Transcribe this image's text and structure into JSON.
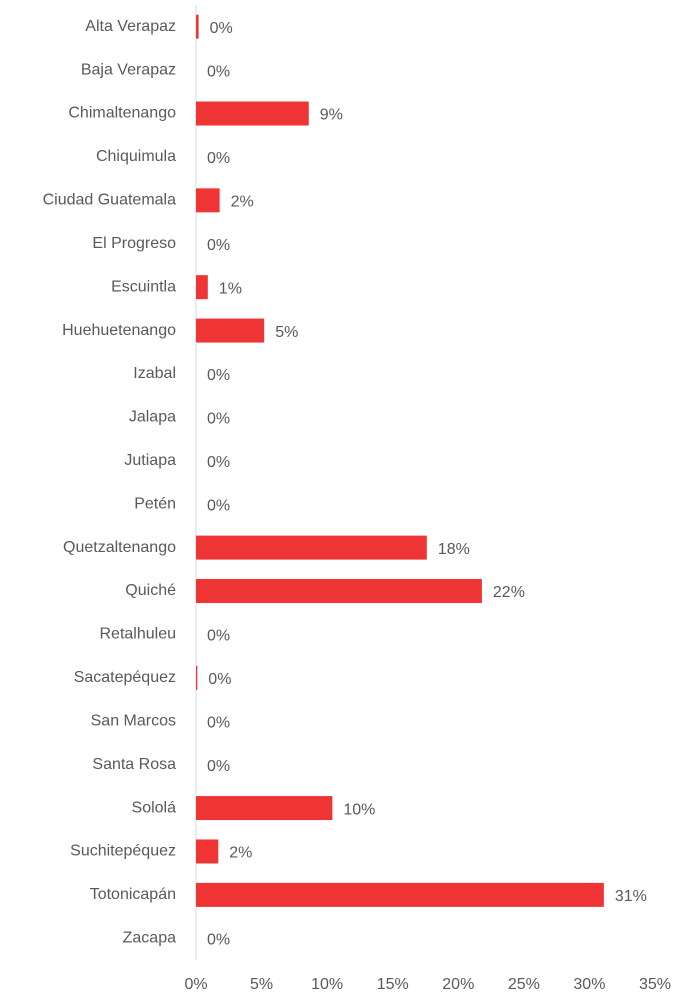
{
  "chart_data": {
    "type": "barh",
    "categories": [
      "Alta Verapaz",
      "Baja Verapaz",
      "Chimaltenango",
      "Chiquimula",
      "Ciudad Guatemala",
      "El Progreso",
      "Escuintla",
      "Huehuetenango",
      "Izabal",
      "Jalapa",
      "Jutiapa",
      "Petén",
      "Quetzaltenango",
      "Quiché",
      "Retalhuleu",
      "Sacatepéquez",
      "San Marcos",
      "Santa Rosa",
      "Sololá",
      "Suchitepéquez",
      "Totonicapán",
      "Zacapa"
    ],
    "values": [
      0.2,
      0,
      8.6,
      0,
      1.8,
      0,
      0.9,
      5.2,
      0,
      0,
      0,
      0,
      17.6,
      21.8,
      0,
      0.1,
      0,
      0,
      10.4,
      1.7,
      31.1,
      0
    ],
    "value_labels": [
      "0%",
      "0%",
      "9%",
      "0%",
      "2%",
      "0%",
      "1%",
      "5%",
      "0%",
      "0%",
      "0%",
      "0%",
      "18%",
      "22%",
      "0%",
      "0%",
      "0%",
      "0%",
      "10%",
      "2%",
      "31%",
      "0%"
    ],
    "color": "#ee3434",
    "xlim": [
      0,
      35
    ],
    "xticks": [
      {
        "value": 0,
        "label": "0%"
      },
      {
        "value": 5,
        "label": "5%"
      },
      {
        "value": 10,
        "label": "10%"
      },
      {
        "value": 15,
        "label": "15%"
      },
      {
        "value": 20,
        "label": "20%"
      },
      {
        "value": 25,
        "label": "25%"
      },
      {
        "value": 30,
        "label": "30%"
      },
      {
        "value": 35,
        "label": "35%"
      }
    ],
    "grid": false
  }
}
